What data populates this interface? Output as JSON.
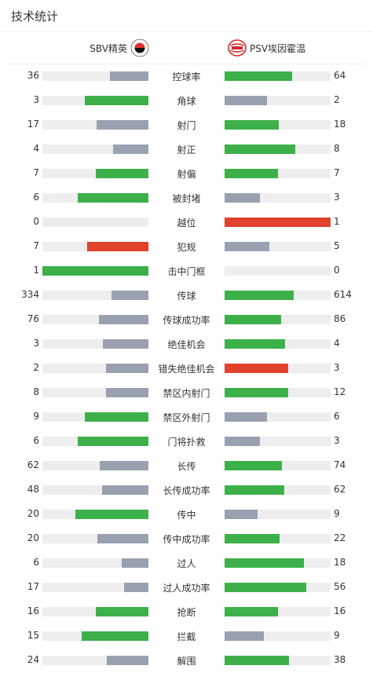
{
  "section_title": "技术统计",
  "teams": {
    "home": {
      "name": "SBV精英"
    },
    "away": {
      "name": "PSV埃因霍温"
    }
  },
  "colors": {
    "green": "#3db04a",
    "gray": "#99a1b0",
    "red": "#e0422d",
    "track": "#eeeeee"
  },
  "stats": [
    {
      "label": "控球率",
      "home": "36",
      "away": "64",
      "home_ratio": 0.36,
      "away_ratio": 0.64,
      "home_color": "gray",
      "away_color": "green"
    },
    {
      "label": "角球",
      "home": "3",
      "away": "2",
      "home_ratio": 0.6,
      "away_ratio": 0.4,
      "home_color": "green",
      "away_color": "gray"
    },
    {
      "label": "射门",
      "home": "17",
      "away": "18",
      "home_ratio": 0.49,
      "away_ratio": 0.51,
      "home_color": "gray",
      "away_color": "green"
    },
    {
      "label": "射正",
      "home": "4",
      "away": "8",
      "home_ratio": 0.33,
      "away_ratio": 0.67,
      "home_color": "gray",
      "away_color": "green"
    },
    {
      "label": "射偏",
      "home": "7",
      "away": "7",
      "home_ratio": 0.5,
      "away_ratio": 0.5,
      "home_color": "green",
      "away_color": "green"
    },
    {
      "label": "被封堵",
      "home": "6",
      "away": "3",
      "home_ratio": 0.67,
      "away_ratio": 0.33,
      "home_color": "green",
      "away_color": "gray"
    },
    {
      "label": "越位",
      "home": "0",
      "away": "1",
      "home_ratio": 0,
      "away_ratio": 1,
      "home_color": "gray",
      "away_color": "red"
    },
    {
      "label": "犯规",
      "home": "7",
      "away": "5",
      "home_ratio": 0.58,
      "away_ratio": 0.42,
      "home_color": "red",
      "away_color": "gray"
    },
    {
      "label": "击中门框",
      "home": "1",
      "away": "0",
      "home_ratio": 1,
      "away_ratio": 0,
      "home_color": "green",
      "away_color": "gray"
    },
    {
      "label": "传球",
      "home": "334",
      "away": "614",
      "home_ratio": 0.35,
      "away_ratio": 0.65,
      "home_color": "gray",
      "away_color": "green"
    },
    {
      "label": "传球成功率",
      "home": "76",
      "away": "86",
      "home_ratio": 0.47,
      "away_ratio": 0.53,
      "home_color": "gray",
      "away_color": "green"
    },
    {
      "label": "绝佳机会",
      "home": "3",
      "away": "4",
      "home_ratio": 0.43,
      "away_ratio": 0.57,
      "home_color": "gray",
      "away_color": "green"
    },
    {
      "label": "错失绝佳机会",
      "home": "2",
      "away": "3",
      "home_ratio": 0.4,
      "away_ratio": 0.6,
      "home_color": "gray",
      "away_color": "red"
    },
    {
      "label": "禁区内射门",
      "home": "8",
      "away": "12",
      "home_ratio": 0.4,
      "away_ratio": 0.6,
      "home_color": "gray",
      "away_color": "green"
    },
    {
      "label": "禁区外射门",
      "home": "9",
      "away": "6",
      "home_ratio": 0.6,
      "away_ratio": 0.4,
      "home_color": "green",
      "away_color": "gray"
    },
    {
      "label": "门将扑救",
      "home": "6",
      "away": "3",
      "home_ratio": 0.67,
      "away_ratio": 0.33,
      "home_color": "green",
      "away_color": "gray"
    },
    {
      "label": "长传",
      "home": "62",
      "away": "74",
      "home_ratio": 0.46,
      "away_ratio": 0.54,
      "home_color": "gray",
      "away_color": "green"
    },
    {
      "label": "长传成功率",
      "home": "48",
      "away": "62",
      "home_ratio": 0.44,
      "away_ratio": 0.56,
      "home_color": "gray",
      "away_color": "green"
    },
    {
      "label": "传中",
      "home": "20",
      "away": "9",
      "home_ratio": 0.69,
      "away_ratio": 0.31,
      "home_color": "green",
      "away_color": "gray"
    },
    {
      "label": "传中成功率",
      "home": "20",
      "away": "22",
      "home_ratio": 0.48,
      "away_ratio": 0.52,
      "home_color": "gray",
      "away_color": "green"
    },
    {
      "label": "过人",
      "home": "6",
      "away": "18",
      "home_ratio": 0.25,
      "away_ratio": 0.75,
      "home_color": "gray",
      "away_color": "green"
    },
    {
      "label": "过人成功率",
      "home": "17",
      "away": "56",
      "home_ratio": 0.23,
      "away_ratio": 0.77,
      "home_color": "gray",
      "away_color": "green"
    },
    {
      "label": "抢断",
      "home": "16",
      "away": "16",
      "home_ratio": 0.5,
      "away_ratio": 0.5,
      "home_color": "green",
      "away_color": "green"
    },
    {
      "label": "拦截",
      "home": "15",
      "away": "9",
      "home_ratio": 0.63,
      "away_ratio": 0.37,
      "home_color": "green",
      "away_color": "gray"
    },
    {
      "label": "解围",
      "home": "24",
      "away": "38",
      "home_ratio": 0.39,
      "away_ratio": 0.61,
      "home_color": "gray",
      "away_color": "green"
    }
  ]
}
